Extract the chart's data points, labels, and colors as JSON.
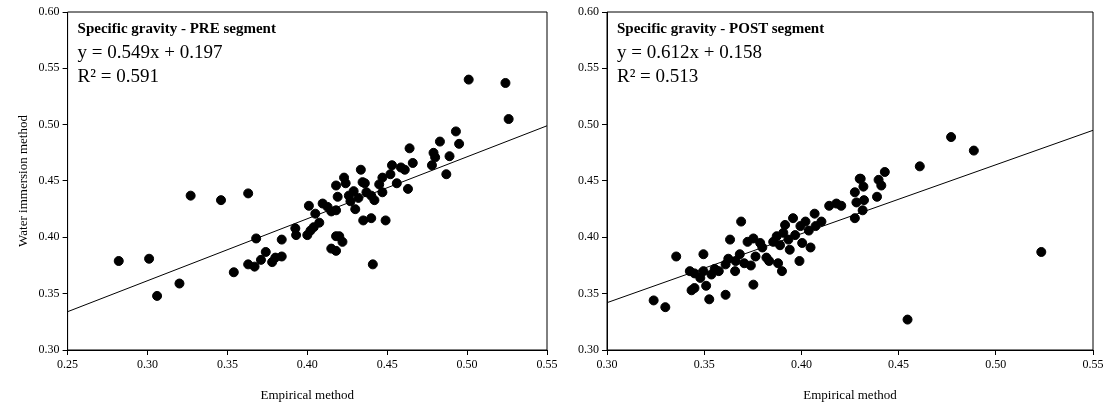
{
  "chart_data": [
    {
      "type": "scatter",
      "title": "Specific gravity - PRE segment",
      "xlabel": "Empirical method",
      "ylabel": "Water immersion method",
      "annotations": [
        "y = 0.549x + 0.197",
        "R² = 0.591"
      ],
      "xlim": [
        0.25,
        0.55
      ],
      "xticks": [
        {
          "value": 0.25,
          "label": "0.25"
        },
        {
          "value": 0.3,
          "label": "0.30"
        },
        {
          "value": 0.35,
          "label": "0.35"
        },
        {
          "value": 0.4,
          "label": "0.40"
        },
        {
          "value": 0.45,
          "label": "0.45"
        },
        {
          "value": 0.5,
          "label": "0.50"
        },
        {
          "value": 0.55,
          "label": "0.55"
        }
      ],
      "ylim": [
        0.3,
        0.6
      ],
      "yticks": [
        {
          "value": 0.3,
          "label": "0.30"
        },
        {
          "value": 0.35,
          "label": "0.35"
        },
        {
          "value": 0.4,
          "label": "0.40"
        },
        {
          "value": 0.45,
          "label": "0.45"
        },
        {
          "value": 0.5,
          "label": "0.50"
        },
        {
          "value": 0.55,
          "label": "0.55"
        },
        {
          "value": 0.6,
          "label": "0.60"
        }
      ],
      "series": [
        {
          "marker": "circle",
          "color": "#000000",
          "x": [
            0.282,
            0.301,
            0.306,
            0.32,
            0.327,
            0.346,
            0.363,
            0.354,
            0.363,
            0.367,
            0.368,
            0.371,
            0.374,
            0.378,
            0.38,
            0.384,
            0.384,
            0.3925,
            0.393,
            0.401,
            0.4,
            0.402,
            0.405,
            0.4075,
            0.404,
            0.4096,
            0.4127,
            0.415,
            0.418,
            0.419,
            0.418,
            0.423,
            0.424,
            0.426,
            0.427,
            0.43,
            0.429,
            0.4335,
            0.4346,
            0.432,
            0.436,
            0.437,
            0.44,
            0.442,
            0.435,
            0.44,
            0.449,
            0.441,
            0.415,
            0.418,
            0.42,
            0.422,
            0.418,
            0.445,
            0.447,
            0.447,
            0.452,
            0.453,
            0.456,
            0.4586,
            0.461,
            0.463,
            0.464,
            0.466,
            0.478,
            0.479,
            0.48,
            0.483,
            0.487,
            0.489,
            0.493,
            0.495,
            0.501,
            0.524,
            0.526
          ],
          "values": [
            0.379,
            0.381,
            0.348,
            0.359,
            0.437,
            0.433,
            0.439,
            0.369,
            0.376,
            0.374,
            0.399,
            0.38,
            0.387,
            0.378,
            0.382,
            0.383,
            0.398,
            0.408,
            0.402,
            0.428,
            0.402,
            0.406,
            0.421,
            0.413,
            0.409,
            0.43,
            0.427,
            0.423,
            0.446,
            0.436,
            0.424,
            0.453,
            0.448,
            0.437,
            0.432,
            0.425,
            0.441,
            0.46,
            0.449,
            0.435,
            0.448,
            0.44,
            0.437,
            0.433,
            0.415,
            0.417,
            0.415,
            0.376,
            0.39,
            0.388,
            0.401,
            0.396,
            0.401,
            0.447,
            0.453,
            0.44,
            0.456,
            0.464,
            0.448,
            0.462,
            0.46,
            0.443,
            0.479,
            0.466,
            0.464,
            0.475,
            0.471,
            0.485,
            0.456,
            0.472,
            0.494,
            0.483,
            0.54,
            0.537,
            0.505
          ]
        },
        {
          "type": "line",
          "color": "#000000",
          "x": [
            0.25,
            0.55
          ],
          "values": [
            0.334,
            0.499
          ]
        }
      ]
    },
    {
      "type": "scatter",
      "title": "Specific gravity - POST segment",
      "xlabel": "Empirical method",
      "annotations": [
        "y = 0.612x + 0.158",
        "R² = 0.513"
      ],
      "xlim": [
        0.3,
        0.55
      ],
      "xticks": [
        {
          "value": 0.3,
          "label": "0.30"
        },
        {
          "value": 0.35,
          "label": "0.35"
        },
        {
          "value": 0.4,
          "label": "0.40"
        },
        {
          "value": 0.45,
          "label": "0.45"
        },
        {
          "value": 0.5,
          "label": "0.50"
        },
        {
          "value": 0.55,
          "label": "0.55"
        }
      ],
      "ylim": [
        0.3,
        0.6
      ],
      "yticks": [
        {
          "value": 0.3,
          "label": "0.30"
        },
        {
          "value": 0.35,
          "label": "0.35"
        },
        {
          "value": 0.4,
          "label": "0.40"
        },
        {
          "value": 0.45,
          "label": "0.45"
        },
        {
          "value": 0.5,
          "label": "0.50"
        },
        {
          "value": 0.55,
          "label": "0.55"
        },
        {
          "value": 0.6,
          "label": "0.60"
        }
      ],
      "series": [
        {
          "marker": "circle",
          "color": "#000000",
          "x": [
            0.324,
            0.33,
            0.3356,
            0.3426,
            0.345,
            0.3435,
            0.345,
            0.348,
            0.3496,
            0.3496,
            0.351,
            0.3526,
            0.3537,
            0.3554,
            0.3575,
            0.361,
            0.361,
            0.3624,
            0.3633,
            0.3659,
            0.3662,
            0.3683,
            0.369,
            0.3706,
            0.3723,
            0.374,
            0.3753,
            0.3753,
            0.3764,
            0.3788,
            0.3799,
            0.382,
            0.3834,
            0.3855,
            0.3873,
            0.388,
            0.39,
            0.389,
            0.3907,
            0.3916,
            0.3933,
            0.394,
            0.3957,
            0.3968,
            0.399,
            0.3995,
            0.4004,
            0.4021,
            0.4038,
            0.4047,
            0.4068,
            0.4073,
            0.4103,
            0.4143,
            0.418,
            0.4205,
            0.4275,
            0.4275,
            0.43,
            0.4283,
            0.4305,
            0.4319,
            0.4322,
            0.4315,
            0.4389,
            0.4397,
            0.4411,
            0.4429,
            0.4609,
            0.477,
            0.4887,
            0.5234,
            0.4546
          ],
          "values": [
            0.344,
            0.338,
            0.383,
            0.37,
            0.368,
            0.353,
            0.355,
            0.364,
            0.385,
            0.37,
            0.357,
            0.345,
            0.367,
            0.372,
            0.37,
            0.349,
            0.376,
            0.381,
            0.398,
            0.37,
            0.379,
            0.385,
            0.414,
            0.377,
            0.396,
            0.375,
            0.399,
            0.358,
            0.383,
            0.395,
            0.391,
            0.382,
            0.379,
            0.396,
            0.401,
            0.377,
            0.37,
            0.393,
            0.404,
            0.411,
            0.398,
            0.389,
            0.417,
            0.402,
            0.379,
            0.41,
            0.395,
            0.414,
            0.406,
            0.391,
            0.421,
            0.41,
            0.414,
            0.428,
            0.43,
            0.428,
            0.417,
            0.44,
            0.452,
            0.431,
            0.452,
            0.445,
            0.433,
            0.424,
            0.436,
            0.451,
            0.446,
            0.458,
            0.463,
            0.489,
            0.477,
            0.387,
            0.327
          ]
        },
        {
          "type": "line",
          "color": "#000000",
          "x": [
            0.3,
            0.55
          ],
          "values": [
            0.342,
            0.495
          ]
        }
      ]
    }
  ]
}
